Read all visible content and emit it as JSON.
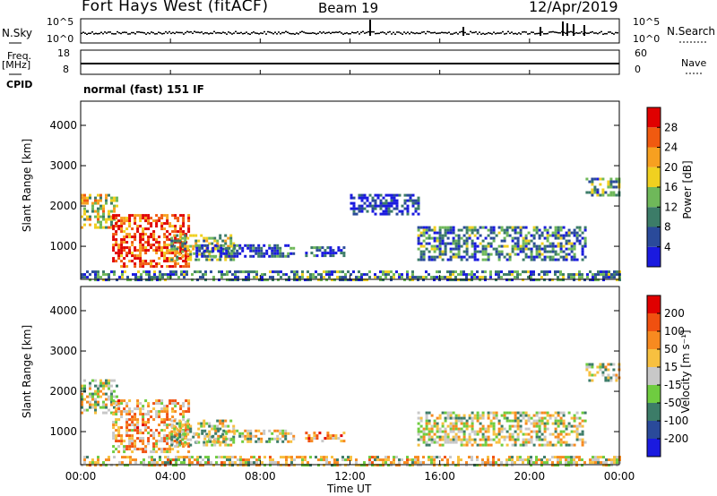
{
  "header": {
    "station": "Fort Hays West (fitACF)",
    "beam": "Beam 19",
    "date": "12/Apr/2019"
  },
  "side_labels": {
    "nsky": "N.Sky",
    "freq": "Freq.",
    "freq_unit": "[MHz]",
    "cpid": "CPID",
    "nsearch": "N.Search",
    "nave": "Nave",
    "nsky_top": "10^5",
    "nsky_bottom": "10^0",
    "nsearch_top": "10^5",
    "nsearch_bottom": "10^0",
    "freq_top": "18",
    "freq_bottom": "8",
    "nave_top": "60",
    "nave_bottom": "0"
  },
  "cpid_text": "normal (fast) 151 IF",
  "x_axis": {
    "label": "Time UT",
    "ticks": [
      "00:00",
      "04:00",
      "08:00",
      "12:00",
      "16:00",
      "20:00",
      "00:00"
    ]
  },
  "chart_data": [
    {
      "type": "heatmap",
      "name": "power-panel",
      "ylabel": "Slant Range [km]",
      "yticks": [
        "1000",
        "2000",
        "3000",
        "4000"
      ],
      "ylim": [
        180,
        4600
      ],
      "xlim_hours": [
        0,
        24
      ],
      "colorbar": {
        "label": "Power [dB]",
        "ticks": [
          "4",
          "8",
          "12",
          "16",
          "20",
          "24",
          "28"
        ],
        "colors": [
          "#1a1adf",
          "#2a4a9a",
          "#3c7c68",
          "#6fb85a",
          "#f0d020",
          "#f7a020",
          "#f05a10",
          "#e00000"
        ]
      },
      "regions": [
        {
          "t0": 0.0,
          "t1": 1.6,
          "r0": 1500,
          "r1": 2300,
          "level": 0.55
        },
        {
          "t0": 1.4,
          "t1": 4.8,
          "r0": 500,
          "r1": 1800,
          "level": 0.85
        },
        {
          "t0": 4.0,
          "t1": 6.8,
          "r0": 700,
          "r1": 1300,
          "level": 0.45
        },
        {
          "t0": 5.0,
          "t1": 9.5,
          "r0": 750,
          "r1": 1050,
          "level": 0.2
        },
        {
          "t0": 10.0,
          "t1": 11.7,
          "r0": 750,
          "r1": 1000,
          "level": 0.15
        },
        {
          "t0": 12.0,
          "t1": 15.0,
          "r0": 1800,
          "r1": 2300,
          "level": 0.1
        },
        {
          "t0": 15.0,
          "t1": 22.5,
          "r0": 700,
          "r1": 1500,
          "level": 0.3
        },
        {
          "t0": 22.5,
          "t1": 24.0,
          "r0": 2300,
          "r1": 2700,
          "level": 0.35
        },
        {
          "t0": 0.0,
          "t1": 24.0,
          "r0": 180,
          "r1": 400,
          "level": 0.3
        }
      ]
    },
    {
      "type": "heatmap",
      "name": "velocity-panel",
      "ylabel": "Slant Range [km]",
      "yticks": [
        "1000",
        "2000",
        "3000",
        "4000"
      ],
      "ylim": [
        180,
        4600
      ],
      "xlim_hours": [
        0,
        24
      ],
      "colorbar": {
        "label": "Velocity [m s⁻¹]",
        "ticks": [
          "200",
          "100",
          "50",
          "15",
          "-15",
          "-50",
          "-100",
          "-200"
        ],
        "colors": [
          "#1a1adf",
          "#2a4a9a",
          "#3c7c68",
          "#6fcc40",
          "#c8c8c8",
          "#f7c040",
          "#f78a20",
          "#f05010",
          "#e00000"
        ]
      },
      "regions": [
        {
          "t0": 0.0,
          "t1": 1.6,
          "r0": 1500,
          "r1": 2300,
          "level": 0.5
        },
        {
          "t0": 1.4,
          "t1": 4.8,
          "r0": 500,
          "r1": 1800,
          "level": 0.65
        },
        {
          "t0": 4.0,
          "t1": 6.8,
          "r0": 700,
          "r1": 1300,
          "level": 0.5
        },
        {
          "t0": 5.0,
          "t1": 9.5,
          "r0": 750,
          "r1": 1050,
          "level": 0.5
        },
        {
          "t0": 10.0,
          "t1": 11.7,
          "r0": 750,
          "r1": 1000,
          "level": 0.7
        },
        {
          "t0": 15.0,
          "t1": 22.5,
          "r0": 700,
          "r1": 1500,
          "level": 0.5
        },
        {
          "t0": 22.5,
          "t1": 24.0,
          "r0": 2300,
          "r1": 2700,
          "level": 0.5
        },
        {
          "t0": 0.0,
          "t1": 24.0,
          "r0": 180,
          "r1": 400,
          "level": 0.55
        }
      ]
    }
  ]
}
